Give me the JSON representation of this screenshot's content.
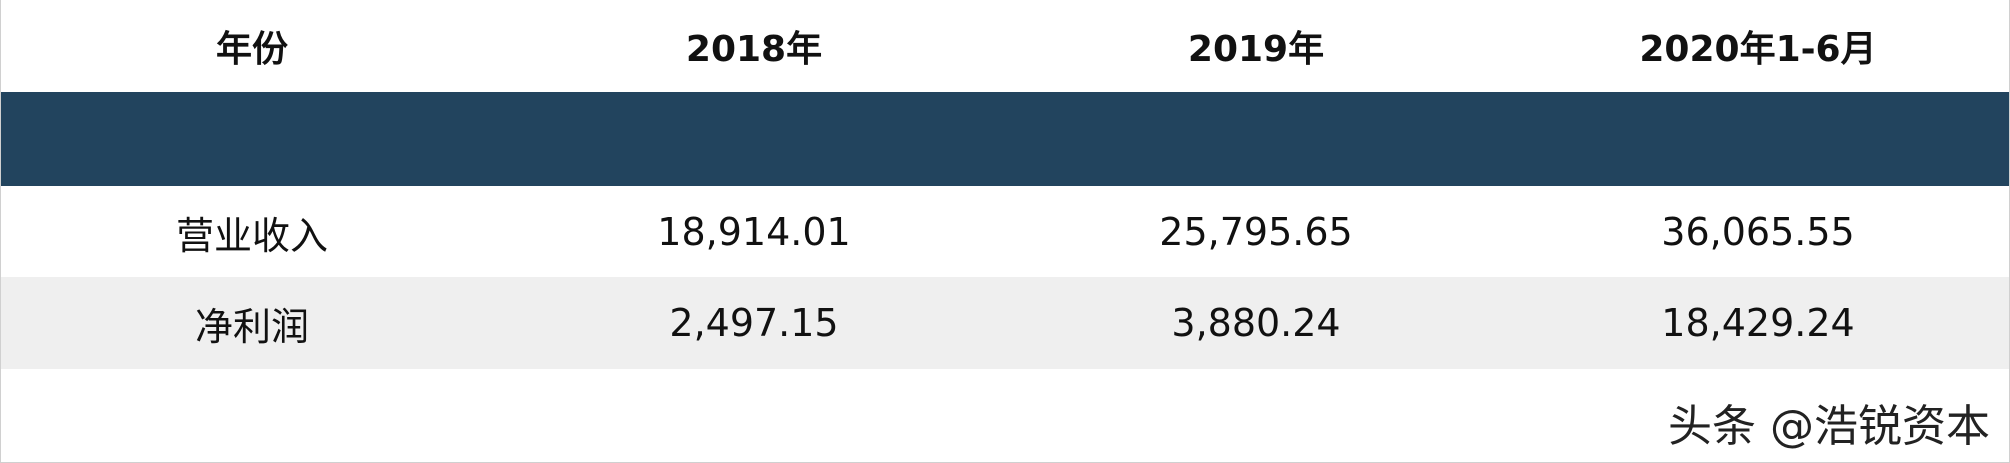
{
  "table": {
    "header": [
      "年份",
      "2018年",
      "2019年",
      "2020年1-6月"
    ],
    "rows": [
      [
        "营业收入",
        "18,914.01",
        "25,795.65",
        "36,065.55"
      ],
      [
        "净利润",
        "2,497.15",
        "3,880.24",
        "18,429.24"
      ]
    ]
  },
  "watermark": "头条 @浩锐资本"
}
